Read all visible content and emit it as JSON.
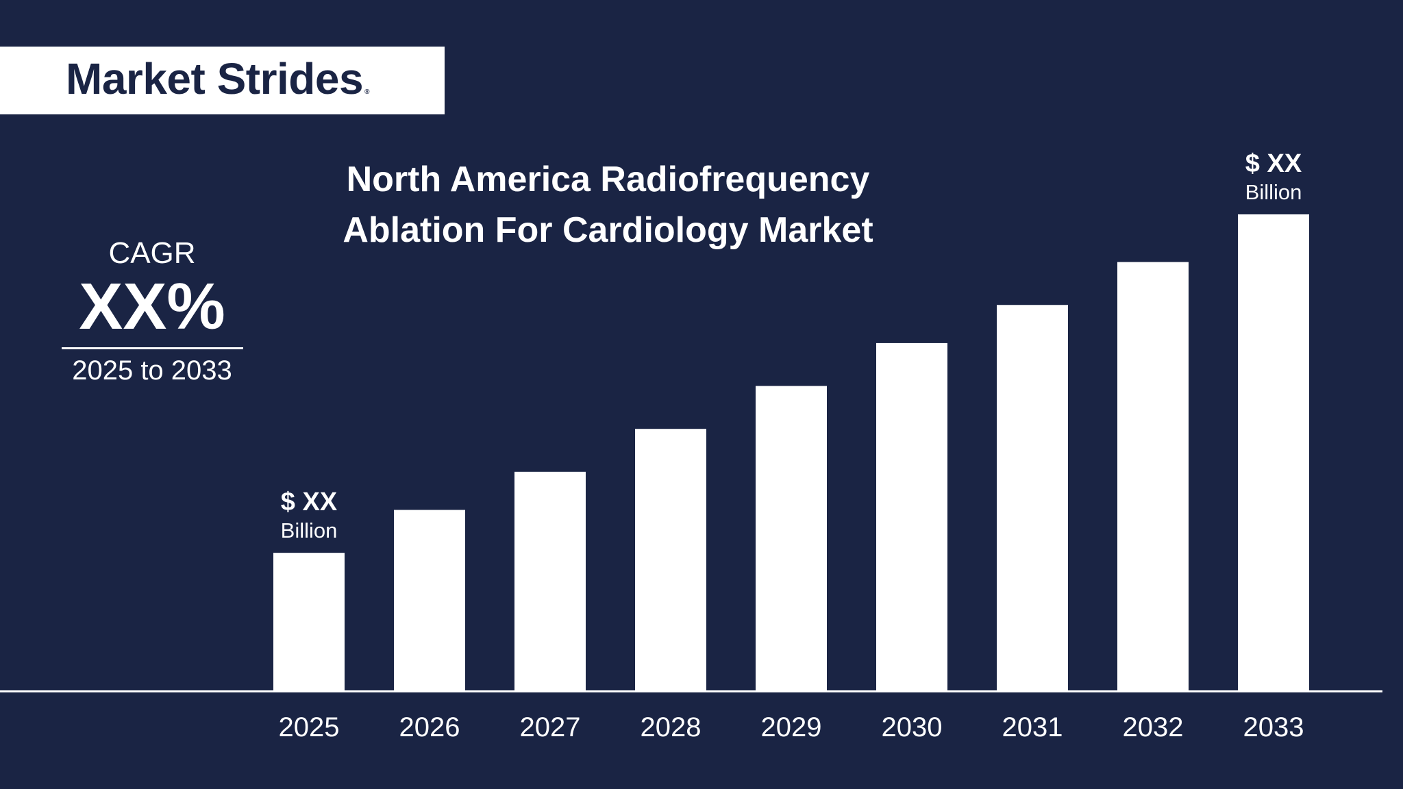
{
  "brand": {
    "name": "Market Strides",
    "mark": "®"
  },
  "title_line1": "North America Radiofrequency",
  "title_line2": "Ablation For Cardiology Market",
  "cagr": {
    "label": "CAGR",
    "value": "XX%",
    "range": "2025 to 2033"
  },
  "colors": {
    "background": "#1a2444",
    "bars": "#ffffff",
    "text": "#ffffff"
  },
  "chart_data": {
    "type": "bar",
    "categories": [
      "2025",
      "2026",
      "2027",
      "2028",
      "2029",
      "2030",
      "2031",
      "2032",
      "2033"
    ],
    "values": [
      29,
      38,
      46,
      55,
      64,
      73,
      81,
      90,
      100
    ],
    "annotations": [
      {
        "category": "2025",
        "value_text": "$ XX",
        "unit_text": "Billion"
      },
      {
        "category": "2033",
        "value_text": "$ XX",
        "unit_text": "Billion"
      }
    ],
    "ylim": [
      0,
      100
    ],
    "grid": false,
    "legend": "none"
  }
}
